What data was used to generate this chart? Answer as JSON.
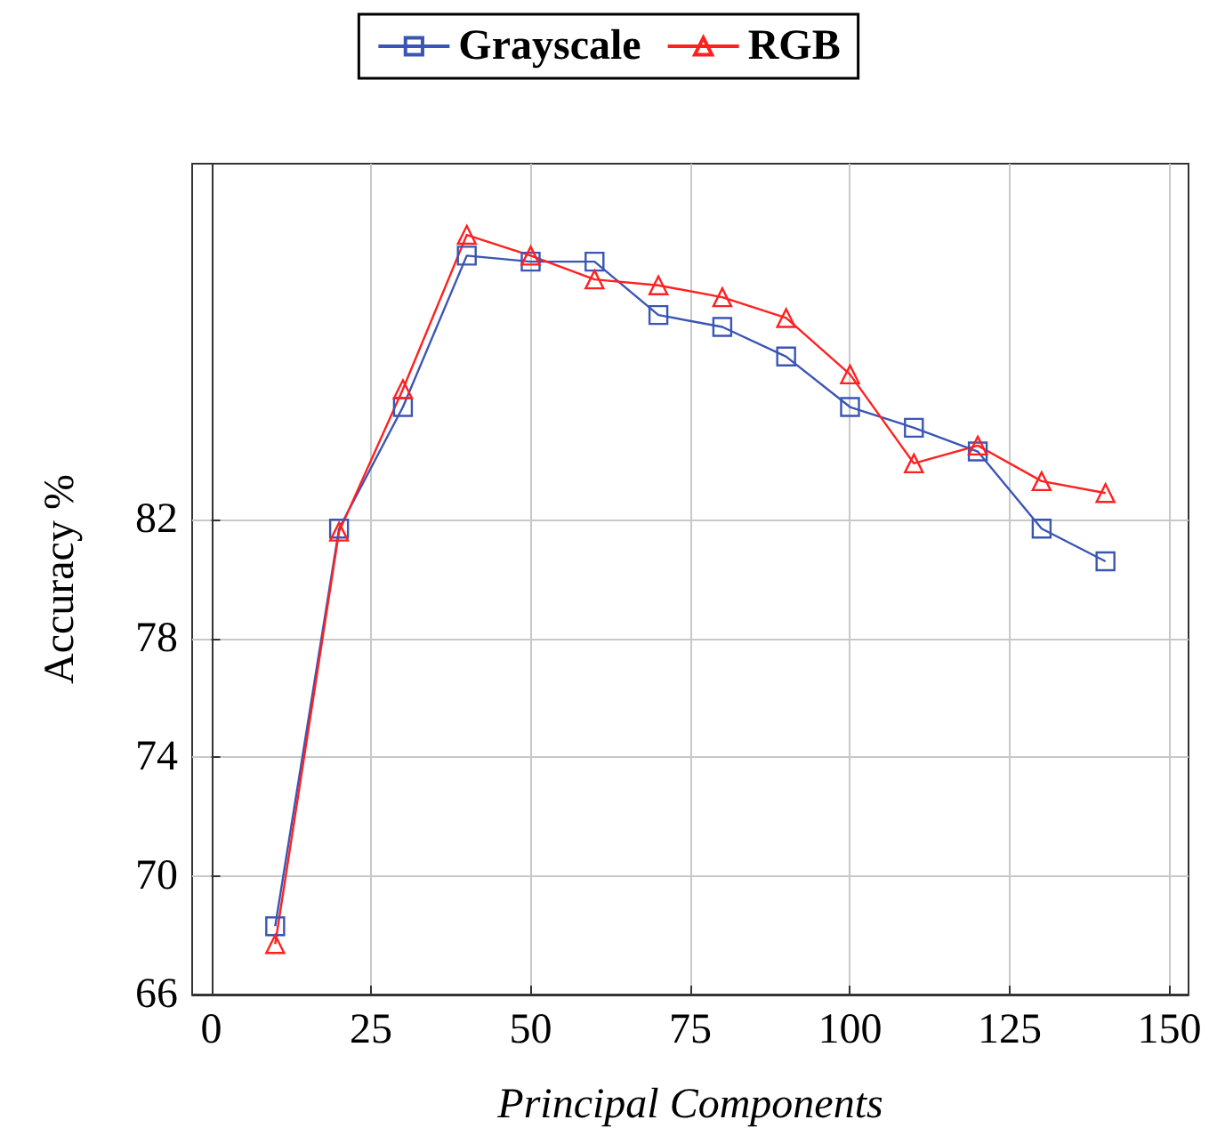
{
  "chart_data": {
    "type": "line",
    "xlabel": "Principal Components",
    "ylabel": "Accuracy %",
    "x": [
      10,
      20,
      30,
      40,
      50,
      60,
      70,
      80,
      90,
      100,
      110,
      120,
      130,
      140
    ],
    "series": [
      {
        "name": "Grayscale",
        "color": "#3a55b4",
        "marker": "square",
        "values": [
          68.3,
          81.7,
          85.8,
          90.9,
          90.7,
          90.7,
          88.9,
          88.5,
          87.5,
          85.8,
          85.1,
          84.3,
          81.7,
          80.6
        ]
      },
      {
        "name": "RGB",
        "color": "#ff2020",
        "marker": "triangle",
        "values": [
          67.7,
          81.6,
          86.4,
          91.6,
          90.9,
          90.1,
          89.9,
          89.5,
          88.8,
          86.9,
          83.9,
          84.5,
          83.3,
          82.9
        ]
      }
    ],
    "xlim": [
      -3,
      153
    ],
    "xticks": [
      0,
      25,
      50,
      75,
      100,
      125,
      150
    ],
    "ylim": [
      66,
      94
    ],
    "yticks": [
      66,
      70,
      74,
      78,
      82
    ],
    "grid": true,
    "legend": "top",
    "line_style": "solid"
  }
}
